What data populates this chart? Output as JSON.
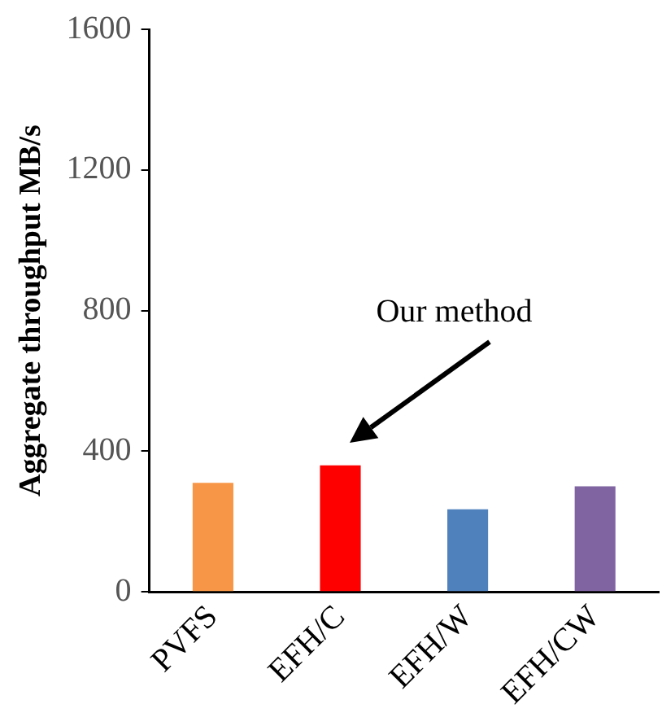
{
  "chart_data": {
    "type": "bar",
    "ylabel": "Aggregate throughput MB/s",
    "categories": [
      "PVFS",
      "EFH/C",
      "EFH/W",
      "EFH/CW"
    ],
    "values": [
      310,
      360,
      235,
      300
    ],
    "colors": [
      "#f79646",
      "#ff0000",
      "#4f81bd",
      "#8064a2"
    ],
    "ylim": [
      0,
      1600
    ],
    "yticks": [
      0,
      400,
      800,
      1200,
      1600
    ],
    "grid": false,
    "legend": false,
    "annotations": [
      "Our method"
    ]
  }
}
